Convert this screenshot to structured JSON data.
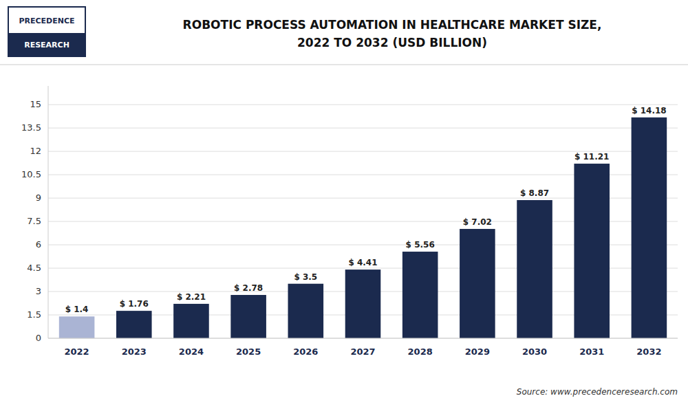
{
  "chart_data": {
    "type": "bar",
    "title": "ROBOTIC PROCESS AUTOMATION IN HEALTHCARE MARKET SIZE,",
    "subtitle": "2022 TO 2032 (USD BILLION)",
    "annotations": [
      "PRECEDENCE",
      "RESEARCH",
      "Source: www.precedenceresearch.com"
    ],
    "categories": [
      "2022",
      "2023",
      "2024",
      "2025",
      "2026",
      "2027",
      "2028",
      "2029",
      "2030",
      "2031",
      "2032"
    ],
    "values": [
      1.4,
      1.76,
      2.21,
      2.78,
      3.5,
      4.41,
      5.56,
      7.02,
      8.87,
      11.21,
      14.18
    ],
    "value_labels": [
      "$ 1.4",
      "$ 1.76",
      "$ 2.21",
      "$ 2.78",
      "$ 3.5",
      "$ 4.41",
      "$ 5.56",
      "$ 7.02",
      "$ 8.87",
      "$ 11.21",
      "$ 14.18"
    ],
    "data_labels": true,
    "colors": [
      "#aab4d4",
      "#1b2a4e",
      "#1b2a4e",
      "#1b2a4e",
      "#1b2a4e",
      "#1b2a4e",
      "#1b2a4e",
      "#1b2a4e",
      "#1b2a4e",
      "#1b2a4e",
      "#1b2a4e"
    ],
    "ylim": [
      0,
      16.2
    ],
    "yticks": [
      0,
      1.5,
      3,
      4.5,
      6,
      7.5,
      9,
      10.5,
      12,
      13.5,
      15
    ],
    "grid": true
  }
}
